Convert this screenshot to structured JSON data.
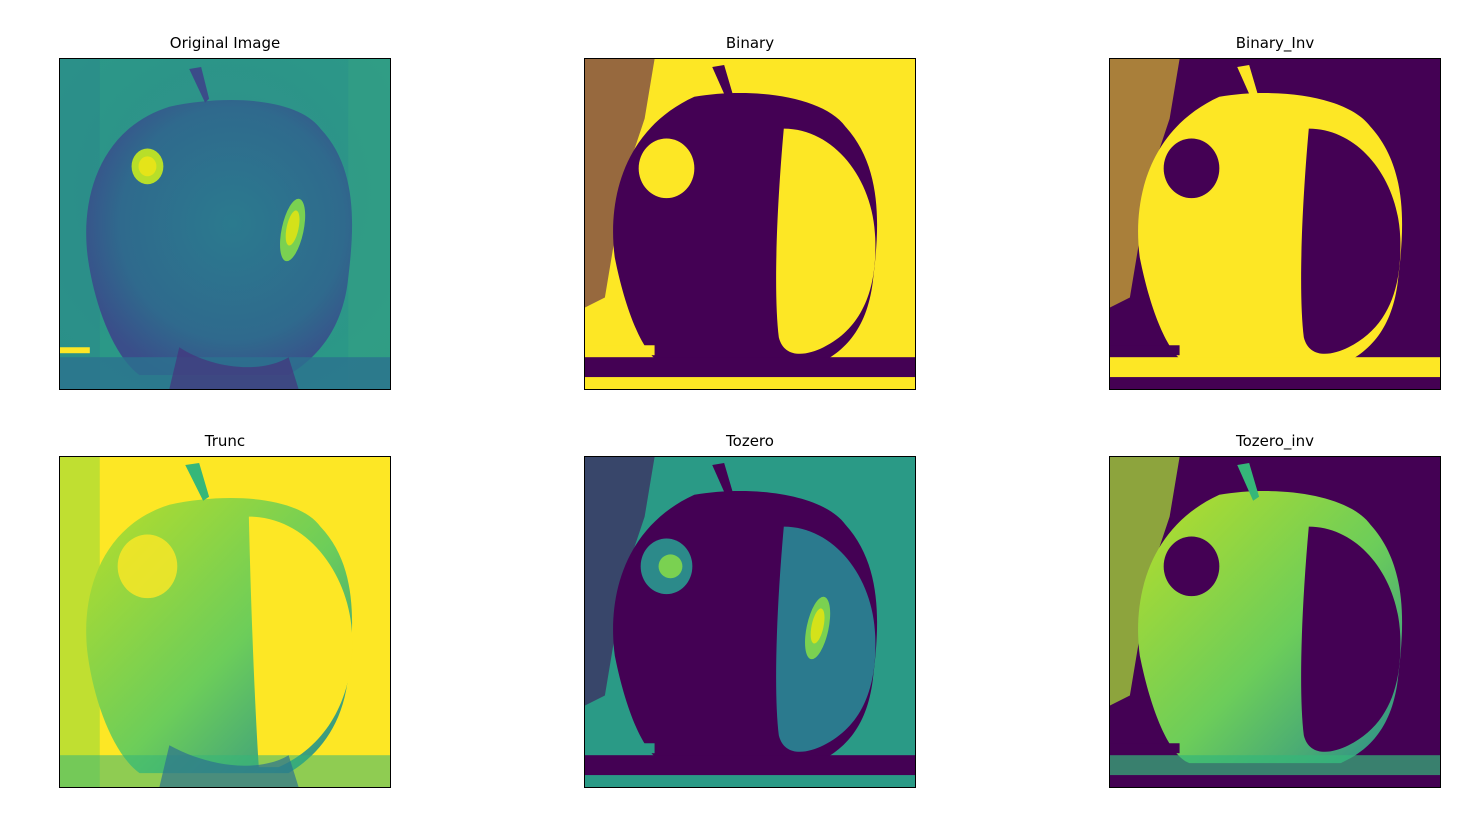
{
  "figure": {
    "colormap": "viridis",
    "colors": {
      "dark": "#440154",
      "teal": "#2a8c8c",
      "mid": "#31688e",
      "green": "#35b779",
      "light": "#7ad151",
      "yellow": "#fde725"
    },
    "panels": [
      {
        "id": "original",
        "title": "Original Image"
      },
      {
        "id": "binary",
        "title": "Binary"
      },
      {
        "id": "binary-inv",
        "title": "Binary_Inv"
      },
      {
        "id": "trunc",
        "title": "Trunc"
      },
      {
        "id": "tozero",
        "title": "Tozero"
      },
      {
        "id": "tozero-inv",
        "title": "Tozero_inv"
      }
    ]
  }
}
